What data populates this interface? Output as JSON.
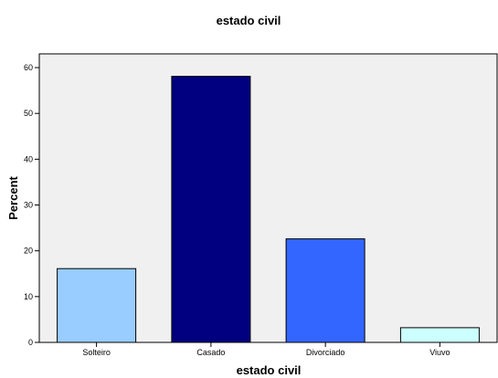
{
  "chart_data": {
    "type": "bar",
    "title": "estado civil",
    "xlabel": "estado civil",
    "ylabel": "Percent",
    "categories": [
      "Solteiro",
      "Casado",
      "Divorciado",
      "Viuvo"
    ],
    "values": [
      16.1,
      58.1,
      22.6,
      3.2
    ],
    "bar_colors": [
      "#99ccff",
      "#000080",
      "#3366ff",
      "#ccffff"
    ],
    "ylim": [
      0,
      63
    ],
    "yticks": [
      0,
      10,
      20,
      30,
      40,
      50,
      60
    ],
    "plot_background": "#f0f0f0",
    "grid": false,
    "legend": "none"
  }
}
